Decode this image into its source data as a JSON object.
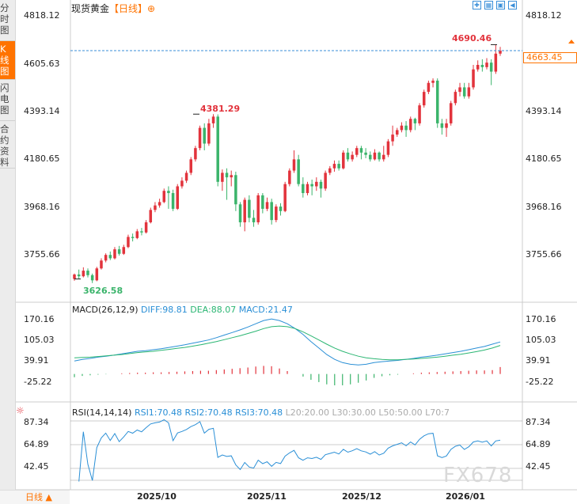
{
  "sidebar": {
    "tabs": [
      {
        "label": "分时图",
        "active": false
      },
      {
        "label": "K线图",
        "active": true
      },
      {
        "label": "闪电图",
        "active": false
      },
      {
        "label": "合约资料",
        "active": false
      }
    ]
  },
  "header": {
    "title": "现货黄金",
    "timeframe": "【日线】",
    "zoom_icon": "zoom-in-icon"
  },
  "toolbar_icons": [
    "fullscreen-icon",
    "grid-icon",
    "image-icon",
    "back-icon"
  ],
  "main": {
    "y_ticks": [
      "4818.12",
      "4605.63",
      "4393.14",
      "4180.65",
      "3968.16",
      "3755.66"
    ],
    "last_price": "4663.45",
    "high_label": "4690.46",
    "mid_high_label": "4381.29",
    "low_label": "3626.58"
  },
  "macd": {
    "label": "MACD(26,12,9)",
    "diff": "DIFF:98.81",
    "dea": "DEA:88.07",
    "macd": "MACD:21.47",
    "y_ticks": [
      "170.16",
      "105.03",
      "39.91",
      "-25.22"
    ]
  },
  "rsi": {
    "label": "RSI(14,14,14)",
    "rsi1": "RSI1:70.48",
    "rsi2": "RSI2:70.48",
    "rsi3": "RSI3:70.48",
    "l20": "L20:20.00",
    "l30": "L30:30.00",
    "l50": "L50:50.00",
    "l70": "L70:7",
    "y_ticks": [
      "87.34",
      "64.89",
      "42.45"
    ]
  },
  "footer": {
    "period": "日线 ▲",
    "x_ticks": [
      "2025/10",
      "2025/11",
      "2025/12",
      "2026/01"
    ]
  },
  "watermark": "FX678",
  "colors": {
    "up": "#e2333c",
    "down": "#3bb46b",
    "accent": "#ff7300",
    "diff_line": "#2a8fd6",
    "dea_line": "#2bb673"
  },
  "chart_data": {
    "type": "candlestick",
    "price_range": [
      3626.58,
      4818.12
    ],
    "candles": [
      [
        3648,
        3668,
        3640,
        3672
      ],
      [
        3668,
        3660,
        3650,
        3690
      ],
      [
        3660,
        3685,
        3655,
        3700
      ],
      [
        3685,
        3665,
        3655,
        3695
      ],
      [
        3665,
        3642,
        3630,
        3672
      ],
      [
        3642,
        3695,
        3638,
        3702
      ],
      [
        3695,
        3730,
        3690,
        3740
      ],
      [
        3730,
        3755,
        3722,
        3762
      ],
      [
        3755,
        3740,
        3732,
        3770
      ],
      [
        3740,
        3780,
        3735,
        3790
      ],
      [
        3780,
        3760,
        3752,
        3795
      ],
      [
        3760,
        3790,
        3755,
        3800
      ],
      [
        3790,
        3835,
        3785,
        3845
      ],
      [
        3835,
        3830,
        3815,
        3850
      ],
      [
        3830,
        3860,
        3825,
        3870
      ],
      [
        3860,
        3855,
        3842,
        3875
      ],
      [
        3855,
        3900,
        3850,
        3910
      ],
      [
        3900,
        3955,
        3895,
        3965
      ],
      [
        3955,
        3975,
        3945,
        3990
      ],
      [
        3975,
        3990,
        3965,
        4005
      ],
      [
        3990,
        4040,
        3985,
        4050
      ],
      [
        4040,
        4030,
        3960,
        4060
      ],
      [
        4030,
        3960,
        3950,
        4045
      ],
      [
        3960,
        4060,
        3955,
        4070
      ],
      [
        4060,
        4085,
        4050,
        4100
      ],
      [
        4085,
        4120,
        4075,
        4130
      ],
      [
        4120,
        4180,
        4110,
        4190
      ],
      [
        4180,
        4230,
        4170,
        4240
      ],
      [
        4230,
        4320,
        4220,
        4330
      ],
      [
        4320,
        4250,
        4220,
        4340
      ],
      [
        4250,
        4340,
        4240,
        4360
      ],
      [
        4340,
        4370,
        4320,
        4381
      ],
      [
        4370,
        4080,
        4060,
        4380
      ],
      [
        4080,
        4120,
        4040,
        4135
      ],
      [
        4120,
        4100,
        4000,
        4140
      ],
      [
        4100,
        4110,
        4060,
        4130
      ],
      [
        4110,
        3980,
        3950,
        4125
      ],
      [
        3980,
        3900,
        3880,
        3990
      ],
      [
        3900,
        4000,
        3860,
        4010
      ],
      [
        4000,
        3920,
        3900,
        4020
      ],
      [
        3920,
        3900,
        3880,
        3955
      ],
      [
        3900,
        4020,
        3890,
        4030
      ],
      [
        4020,
        3960,
        3940,
        4030
      ],
      [
        3960,
        3990,
        3950,
        4010
      ],
      [
        3990,
        3910,
        3890,
        4005
      ],
      [
        3910,
        3970,
        3900,
        3980
      ],
      [
        3970,
        3950,
        3930,
        3985
      ],
      [
        3950,
        4070,
        3945,
        4080
      ],
      [
        4070,
        4130,
        4060,
        4140
      ],
      [
        4130,
        4180,
        4120,
        4220
      ],
      [
        4180,
        4070,
        4060,
        4200
      ],
      [
        4070,
        4030,
        4010,
        4100
      ],
      [
        4030,
        4070,
        4020,
        4080
      ],
      [
        4070,
        4060,
        4020,
        4090
      ],
      [
        4060,
        4080,
        4040,
        4100
      ],
      [
        4080,
        4050,
        4010,
        4090
      ],
      [
        4050,
        4120,
        4040,
        4130
      ],
      [
        4120,
        4140,
        4110,
        4150
      ],
      [
        4140,
        4160,
        4125,
        4175
      ],
      [
        4160,
        4140,
        4130,
        4175
      ],
      [
        4140,
        4210,
        4135,
        4220
      ],
      [
        4210,
        4180,
        4170,
        4230
      ],
      [
        4180,
        4200,
        4170,
        4215
      ],
      [
        4200,
        4230,
        4190,
        4240
      ],
      [
        4230,
        4210,
        4180,
        4240
      ],
      [
        4210,
        4200,
        4185,
        4230
      ],
      [
        4200,
        4180,
        4170,
        4215
      ],
      [
        4180,
        4210,
        4175,
        4225
      ],
      [
        4210,
        4180,
        4170,
        4215
      ],
      [
        4180,
        4200,
        4170,
        4240
      ],
      [
        4200,
        4260,
        4190,
        4270
      ],
      [
        4260,
        4290,
        4240,
        4330
      ],
      [
        4290,
        4310,
        4280,
        4320
      ],
      [
        4310,
        4330,
        4300,
        4345
      ],
      [
        4330,
        4310,
        4280,
        4350
      ],
      [
        4310,
        4360,
        4300,
        4370
      ],
      [
        4360,
        4340,
        4310,
        4365
      ],
      [
        4340,
        4420,
        4330,
        4430
      ],
      [
        4420,
        4480,
        4410,
        4490
      ],
      [
        4480,
        4520,
        4470,
        4530
      ],
      [
        4520,
        4530,
        4500,
        4540
      ],
      [
        4530,
        4340,
        4320,
        4540
      ],
      [
        4340,
        4320,
        4290,
        4360
      ],
      [
        4320,
        4340,
        4280,
        4360
      ],
      [
        4340,
        4430,
        4330,
        4440
      ],
      [
        4430,
        4480,
        4420,
        4490
      ],
      [
        4480,
        4500,
        4460,
        4520
      ],
      [
        4500,
        4460,
        4450,
        4520
      ],
      [
        4460,
        4500,
        4450,
        4520
      ],
      [
        4500,
        4580,
        4490,
        4600
      ],
      [
        4580,
        4600,
        4570,
        4620
      ],
      [
        4600,
        4590,
        4570,
        4625
      ],
      [
        4590,
        4610,
        4580,
        4630
      ],
      [
        4610,
        4570,
        4510,
        4625
      ],
      [
        4570,
        4650,
        4560,
        4690
      ],
      [
        4650,
        4663,
        4640,
        4680
      ]
    ],
    "macd": {
      "diff": [
        40,
        45,
        48,
        52,
        55,
        58,
        62,
        66,
        70,
        72,
        75,
        78,
        82,
        86,
        90,
        95,
        100,
        105,
        112,
        120,
        128,
        136,
        145,
        155,
        165,
        170,
        165,
        155,
        140,
        122,
        100,
        80,
        60,
        45,
        35,
        30,
        28,
        30,
        35,
        38,
        40,
        42,
        45,
        48,
        52,
        55,
        58,
        62,
        66,
        70,
        75,
        80,
        85,
        92,
        98.81
      ],
      "dea": [
        50,
        51,
        52,
        54,
        56,
        58,
        60,
        63,
        66,
        68,
        70,
        73,
        76,
        79,
        82,
        86,
        90,
        95,
        100,
        106,
        112,
        118,
        125,
        132,
        140,
        146,
        148,
        146,
        140,
        130,
        118,
        105,
        92,
        80,
        70,
        62,
        55,
        50,
        47,
        45,
        44,
        44,
        45,
        46,
        48,
        50,
        52,
        55,
        58,
        61,
        65,
        69,
        74,
        80,
        88.07
      ],
      "hist": [
        -10,
        -6,
        -4,
        -2,
        -1,
        0,
        2,
        3,
        4,
        4,
        5,
        5,
        6,
        7,
        8,
        9,
        10,
        10,
        12,
        14,
        16,
        18,
        20,
        23,
        25,
        24,
        17,
        9,
        0,
        -8,
        -18,
        -25,
        -32,
        -35,
        -35,
        -32,
        -27,
        -20,
        -12,
        -7,
        -4,
        -2,
        0,
        2,
        4,
        5,
        6,
        7,
        8,
        9,
        10,
        11,
        11,
        12,
        21.47
      ]
    },
    "rsi": {
      "rsi1": 70.48,
      "rsi2": 70.48,
      "rsi3": 70.48
    }
  }
}
